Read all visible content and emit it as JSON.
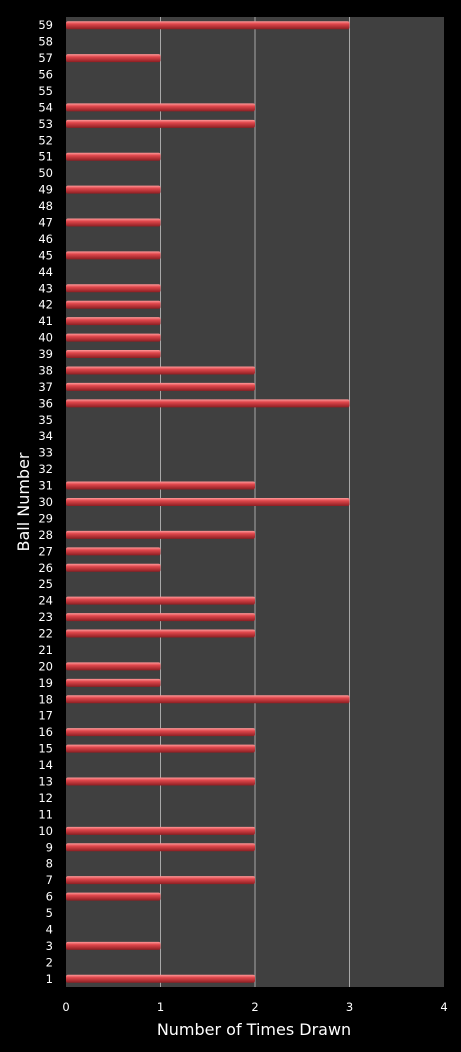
{
  "chart_data": {
    "type": "bar",
    "orientation": "horizontal",
    "title": "",
    "xlabel": "Number of Times Drawn",
    "ylabel": "Ball Number",
    "xlim": [
      0,
      4
    ],
    "x_ticks": [
      "0",
      "1",
      "2",
      "3",
      "4"
    ],
    "grid": true,
    "legend": "none",
    "colors": {
      "background": "#000000",
      "plot_area": "#404040",
      "bar": "#e0474c",
      "gridline": "#a8a8a8",
      "text": "#ffffff"
    },
    "categories": [
      "1",
      "2",
      "3",
      "4",
      "5",
      "6",
      "7",
      "8",
      "9",
      "10",
      "11",
      "12",
      "13",
      "14",
      "15",
      "16",
      "17",
      "18",
      "19",
      "20",
      "21",
      "22",
      "23",
      "24",
      "25",
      "26",
      "27",
      "28",
      "29",
      "30",
      "31",
      "32",
      "33",
      "34",
      "35",
      "36",
      "37",
      "38",
      "39",
      "40",
      "41",
      "42",
      "43",
      "44",
      "45",
      "46",
      "47",
      "48",
      "49",
      "50",
      "51",
      "52",
      "53",
      "54",
      "55",
      "56",
      "57",
      "58",
      "59"
    ],
    "values": [
      2,
      0,
      1,
      0,
      0,
      1,
      2,
      0,
      2,
      2,
      0,
      0,
      2,
      0,
      2,
      2,
      0,
      3,
      1,
      1,
      0,
      2,
      2,
      2,
      0,
      1,
      1,
      2,
      0,
      3,
      2,
      0,
      0,
      0,
      0,
      3,
      2,
      2,
      1,
      1,
      1,
      1,
      1,
      0,
      1,
      0,
      1,
      0,
      1,
      0,
      1,
      0,
      2,
      2,
      0,
      0,
      1,
      0,
      3
    ]
  }
}
